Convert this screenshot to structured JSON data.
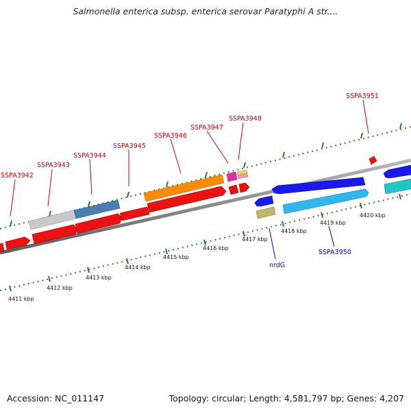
{
  "header": {
    "title": "Salmonella enterica subsp. enterica serovar Paratyphi A str...."
  },
  "footer": {
    "accession": "Accession: NC_011147",
    "topology": "Topology: circular; Length: 4,581,797 bp; Genes: 4,207"
  },
  "colors": {
    "gene_label": "#cc0000",
    "gene_label_reverse": "#0000cc",
    "backbone": "#8c8c8c",
    "tick": "#2b7a2b",
    "red": "#ee1111",
    "orange": "#ff8c00",
    "gray": "#c0c0c0",
    "steelblue": "#4682b4",
    "magenta": "#e0309a",
    "blue": "#1a1aee",
    "skyblue": "#2fb8ee",
    "cyan": "#1ec8c8",
    "khaki": "#bdb76b",
    "pink_small": "#f0a0a0",
    "tan_small": "#e8d070"
  },
  "scale_labels": [
    "4411 kbp",
    "4412 kbp",
    "4413 kbp",
    "4414 kbp",
    "4415 kbp",
    "4416 kbp",
    "4417 kbp",
    "4418 kbp",
    "4419 kbp",
    "4420 kbp"
  ],
  "gene_labels_forward": [
    "SSPA3942",
    "SSPA3943",
    "SSPA3944",
    "SSPA3945",
    "SSPA3946",
    "SSPA3947",
    "SSPA3948",
    "SSPA3951"
  ],
  "gene_labels_reverse": [
    "nrdG",
    "SSPA3950"
  ]
}
